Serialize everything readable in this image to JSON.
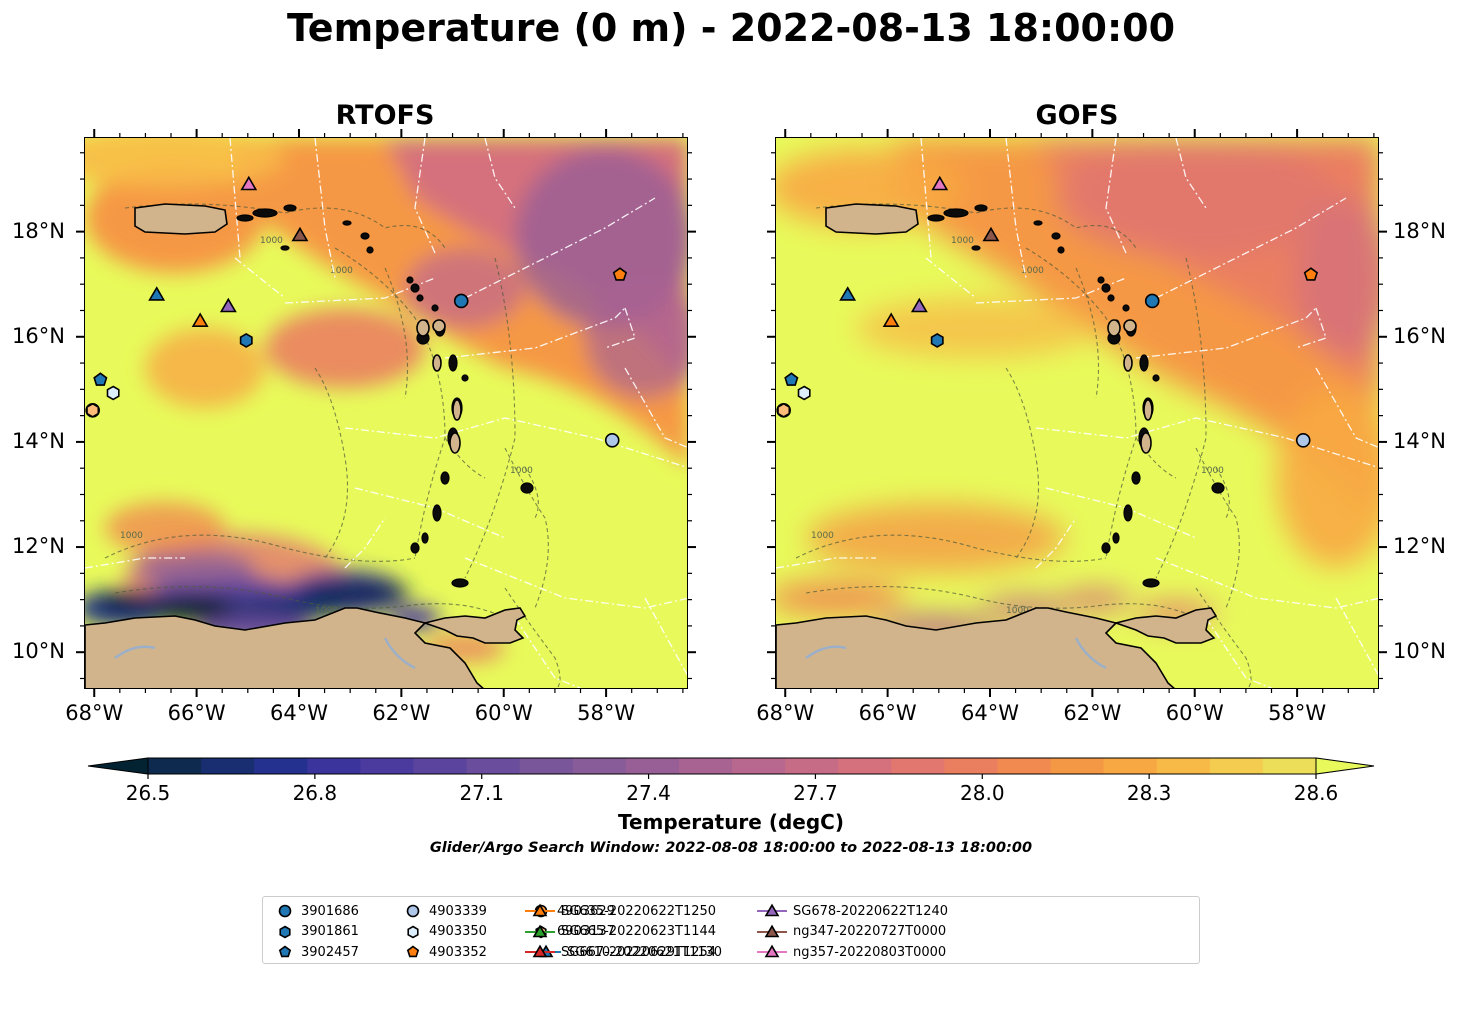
{
  "title": "Temperature (0 m) - 2022-08-13 18:00:00",
  "panels": [
    {
      "title": "RTOFS",
      "variant": "rtofs"
    },
    {
      "title": "GOFS",
      "variant": "gofs"
    }
  ],
  "map": {
    "lon_range": [
      -68.2,
      -56.4
    ],
    "lat_range": [
      9.3,
      19.8
    ],
    "x_ticks": [
      {
        "lon": -68,
        "label": "68°W"
      },
      {
        "lon": -66,
        "label": "66°W"
      },
      {
        "lon": -64,
        "label": "64°W"
      },
      {
        "lon": -62,
        "label": "62°W"
      },
      {
        "lon": -60,
        "label": "60°W"
      },
      {
        "lon": -58,
        "label": "58°W"
      }
    ],
    "y_ticks": [
      {
        "lat": 18,
        "label": "18°N"
      },
      {
        "lat": 16,
        "label": "16°N"
      },
      {
        "lat": 14,
        "label": "14°N"
      },
      {
        "lat": 12,
        "label": "12°N"
      },
      {
        "lat": 10,
        "label": "10°N"
      }
    ],
    "land_color": "#d2b48c",
    "isobath_label": "1000"
  },
  "colorbar": {
    "title": "Temperature (degC)",
    "min": 26.5,
    "max": 28.6,
    "ticks": [
      "26.5",
      "26.8",
      "27.1",
      "27.4",
      "27.7",
      "28.0",
      "28.3",
      "28.6"
    ],
    "colors": [
      "#032333",
      "#0f2a4f",
      "#192e70",
      "#24318e",
      "#3a349c",
      "#4b3b9f",
      "#5b449e",
      "#6a4d9c",
      "#795599",
      "#885c98",
      "#975f96",
      "#a86393",
      "#b8678e",
      "#c66c86",
      "#d5717c",
      "#e1776f",
      "#ea7f60",
      "#f08a50",
      "#f59845",
      "#f8a843",
      "#f8ba47",
      "#f4cc4f",
      "#ecde59",
      "#e8fa5b"
    ]
  },
  "search_window": "Glider/Argo Search Window: 2022-08-08 18:00:00 to 2022-08-13 18:00:00",
  "platforms": [
    {
      "id": "3901686",
      "marker": "circle",
      "color": "#1f77b4",
      "lon": -60.85,
      "lat": 16.7
    },
    {
      "id": "3901861",
      "marker": "hexagon",
      "color": "#1f77b4",
      "lon": -65.05,
      "lat": 15.95
    },
    {
      "id": "3902457",
      "marker": "pentagon",
      "color": "#1f77b4",
      "lon": -67.9,
      "lat": 15.2
    },
    {
      "id": "4903339",
      "marker": "circle",
      "color": "#aec7e8",
      "lon": -57.9,
      "lat": 14.05
    },
    {
      "id": "4903350",
      "marker": "hexagon",
      "color": "#dceefb",
      "lon": -67.65,
      "lat": 14.95
    },
    {
      "id": "4903352",
      "marker": "pentagon",
      "color": "#ff7f0e",
      "lon": -57.75,
      "lat": 17.2
    },
    {
      "id": "4903629",
      "marker": "circle",
      "color": "#ff9f40",
      "lon": -68.05,
      "lat": 14.62
    },
    {
      "id": "6903137",
      "marker": "hexagon",
      "color": "#ffbb78",
      "lon": -68.05,
      "lat": 14.62
    },
    {
      "id": "SG610-20220621T1130",
      "marker": "triangle",
      "color": "#1f77b4",
      "lon": -66.8,
      "lat": 16.82
    },
    {
      "id": "SG635-20220622T1250",
      "marker": "triangle",
      "color": "#ff7f0e",
      "lon": -65.95,
      "lat": 16.32
    },
    {
      "id": "SG665-20220623T1144",
      "marker": "triangle",
      "color": "#2ca02c",
      "lon": null,
      "lat": null
    },
    {
      "id": "SG667-20220629T1254",
      "marker": "triangle",
      "color": "#d62728",
      "lon": null,
      "lat": null
    },
    {
      "id": "SG678-20220622T1240",
      "marker": "triangle",
      "color": "#9467bd",
      "lon": -65.4,
      "lat": 16.6
    },
    {
      "id": "ng347-20220727T0000",
      "marker": "triangle",
      "color": "#8c564b",
      "lon": -64.0,
      "lat": 17.95
    },
    {
      "id": "ng357-20220803T0000",
      "marker": "triangle",
      "color": "#e377c2",
      "lon": -65.0,
      "lat": 18.92
    }
  ]
}
